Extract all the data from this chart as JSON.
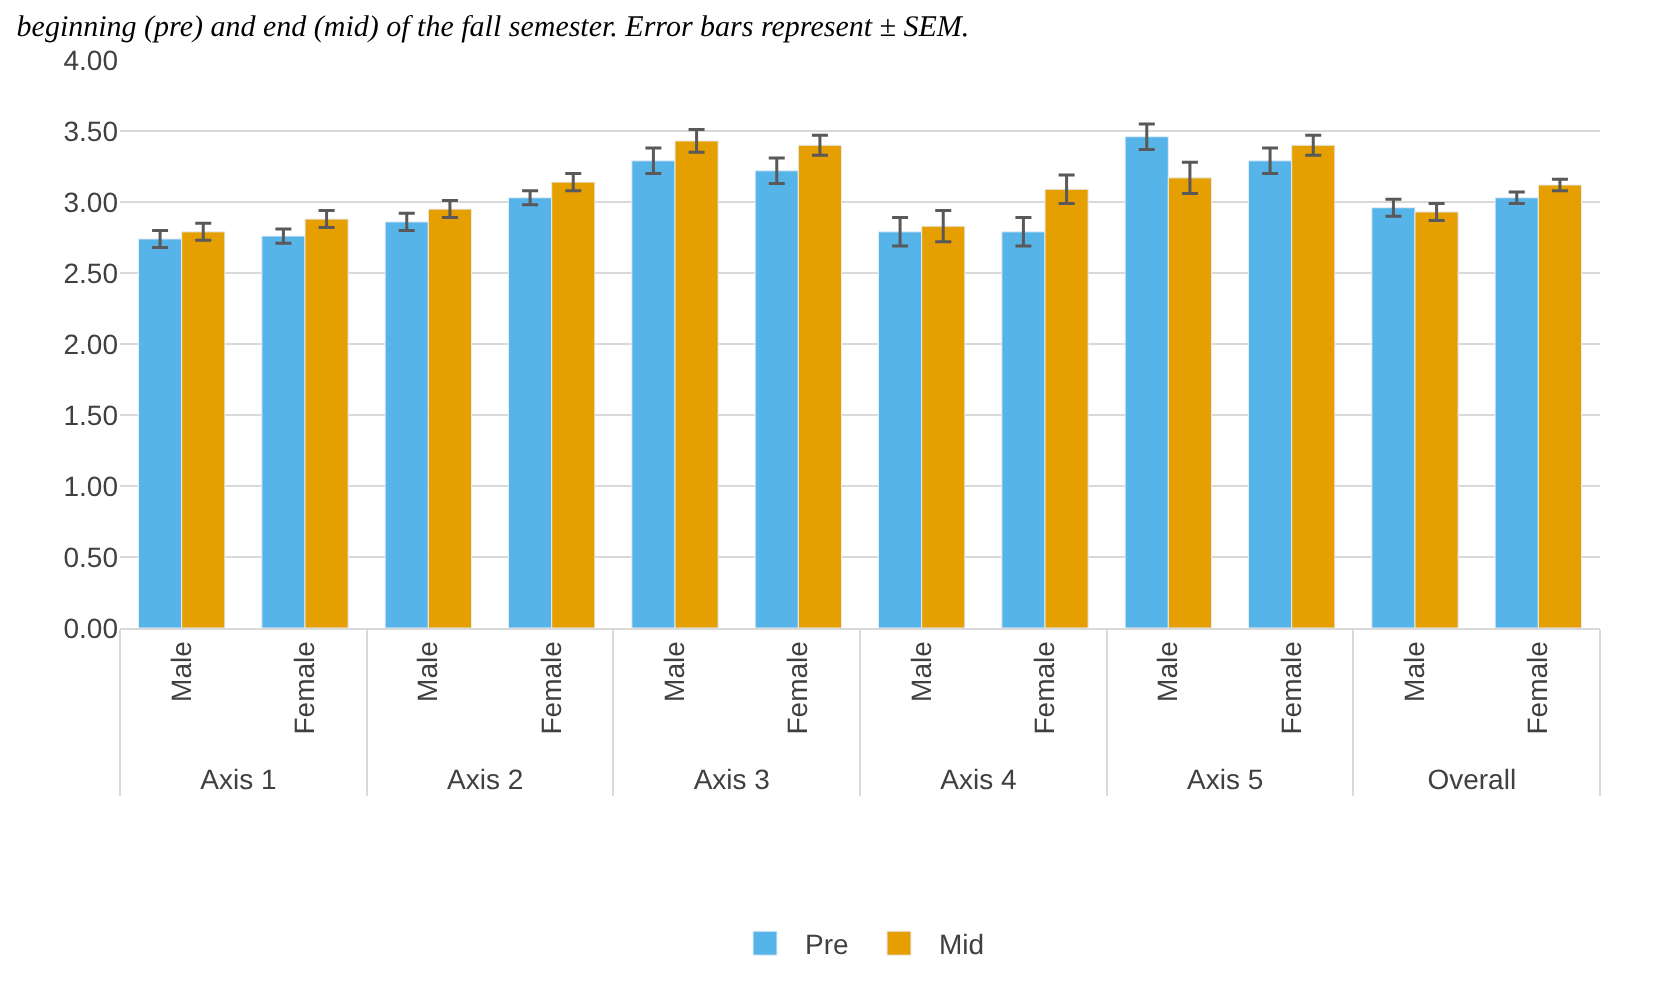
{
  "chart_data": {
    "type": "bar",
    "title": "beginning (pre) and end (mid) of the fall semester. Error bars represent ± SEM.",
    "categories": [
      "Male",
      "Female",
      "Male",
      "Female",
      "Male",
      "Female",
      "Male",
      "Female",
      "Male",
      "Female",
      "Male",
      "Female"
    ],
    "annotations": [
      "Axis 1",
      "Axis 2",
      "Axis 3",
      "Axis 4",
      "Axis 5",
      "Overall"
    ],
    "series": [
      {
        "name": "Pre",
        "color": "#56b4e9",
        "values": [
          2.74,
          2.76,
          2.86,
          3.03,
          3.29,
          3.22,
          2.79,
          2.79,
          3.46,
          3.29,
          2.96,
          3.03
        ],
        "errors": [
          0.06,
          0.05,
          0.06,
          0.05,
          0.09,
          0.09,
          0.1,
          0.1,
          0.09,
          0.09,
          0.06,
          0.04
        ]
      },
      {
        "name": "Mid",
        "color": "#e69f00",
        "values": [
          2.79,
          2.88,
          2.95,
          3.14,
          3.43,
          3.4,
          2.83,
          3.09,
          3.17,
          3.4,
          2.93,
          3.12
        ],
        "errors": [
          0.06,
          0.06,
          0.06,
          0.06,
          0.08,
          0.07,
          0.11,
          0.1,
          0.11,
          0.07,
          0.06,
          0.04
        ]
      }
    ],
    "ylim": [
      0,
      4
    ],
    "yticks": [
      {
        "value": 0,
        "label": "0.00"
      },
      {
        "value": 0.5,
        "label": "0.50"
      },
      {
        "value": 1,
        "label": "1.00"
      },
      {
        "value": 1.5,
        "label": "1.50"
      },
      {
        "value": 2,
        "label": "2.00"
      },
      {
        "value": 2.5,
        "label": "2.50"
      },
      {
        "value": 3,
        "label": "3.00"
      },
      {
        "value": 3.5,
        "label": "3.50"
      },
      {
        "value": 4,
        "label": "4.00"
      }
    ],
    "grid": "y",
    "legend": "bottom"
  }
}
